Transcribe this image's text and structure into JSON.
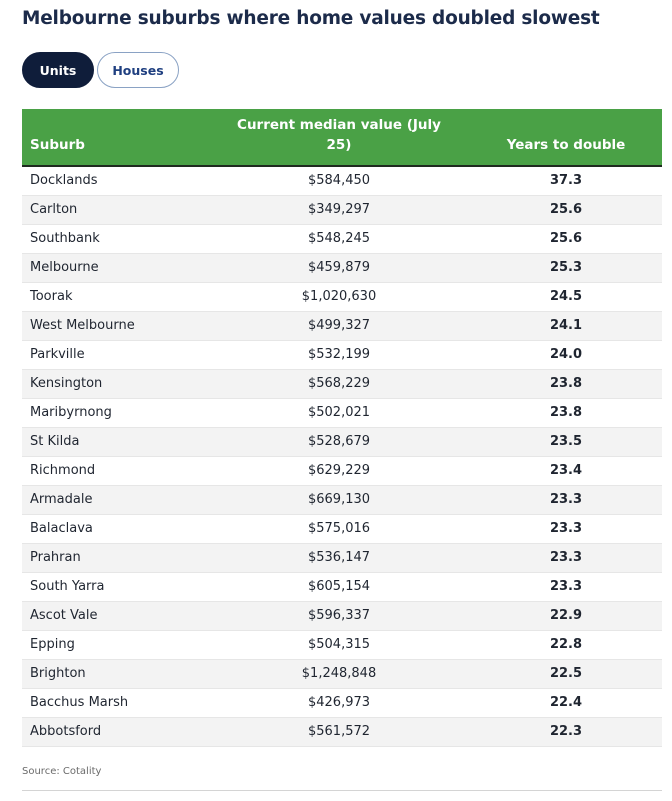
{
  "title": "Melbourne suburbs where home values doubled slowest",
  "toggles": [
    {
      "label": "Units",
      "active": true
    },
    {
      "label": "Houses",
      "active": false
    }
  ],
  "colors": {
    "header_background": "#4aa146",
    "active_toggle": "#0f1d3a",
    "title": "#1c2b4a"
  },
  "chart_data": {
    "type": "table",
    "title": "Melbourne suburbs where home values doubled slowest",
    "columns": [
      "Suburb",
      "Current median value (July 25)",
      "Years to double"
    ],
    "rows": [
      {
        "suburb": "Docklands",
        "median_value": "$584,450",
        "years_to_double": "37.3"
      },
      {
        "suburb": "Carlton",
        "median_value": "$349,297",
        "years_to_double": "25.6"
      },
      {
        "suburb": "Southbank",
        "median_value": "$548,245",
        "years_to_double": "25.6"
      },
      {
        "suburb": "Melbourne",
        "median_value": "$459,879",
        "years_to_double": "25.3"
      },
      {
        "suburb": "Toorak",
        "median_value": "$1,020,630",
        "years_to_double": "24.5"
      },
      {
        "suburb": "West Melbourne",
        "median_value": "$499,327",
        "years_to_double": "24.1"
      },
      {
        "suburb": "Parkville",
        "median_value": "$532,199",
        "years_to_double": "24.0"
      },
      {
        "suburb": "Kensington",
        "median_value": "$568,229",
        "years_to_double": "23.8"
      },
      {
        "suburb": "Maribyrnong",
        "median_value": "$502,021",
        "years_to_double": "23.8"
      },
      {
        "suburb": "St Kilda",
        "median_value": "$528,679",
        "years_to_double": "23.5"
      },
      {
        "suburb": "Richmond",
        "median_value": "$629,229",
        "years_to_double": "23.4"
      },
      {
        "suburb": "Armadale",
        "median_value": "$669,130",
        "years_to_double": "23.3"
      },
      {
        "suburb": "Balaclava",
        "median_value": "$575,016",
        "years_to_double": "23.3"
      },
      {
        "suburb": "Prahran",
        "median_value": "$536,147",
        "years_to_double": "23.3"
      },
      {
        "suburb": "South Yarra",
        "median_value": "$605,154",
        "years_to_double": "23.3"
      },
      {
        "suburb": "Ascot Vale",
        "median_value": "$596,337",
        "years_to_double": "22.9"
      },
      {
        "suburb": "Epping",
        "median_value": "$504,315",
        "years_to_double": "22.8"
      },
      {
        "suburb": "Brighton",
        "median_value": "$1,248,848",
        "years_to_double": "22.5"
      },
      {
        "suburb": "Bacchus Marsh",
        "median_value": "$426,973",
        "years_to_double": "22.4"
      },
      {
        "suburb": "Abbotsford",
        "median_value": "$561,572",
        "years_to_double": "22.3"
      }
    ],
    "source": "Source: Cotality"
  }
}
